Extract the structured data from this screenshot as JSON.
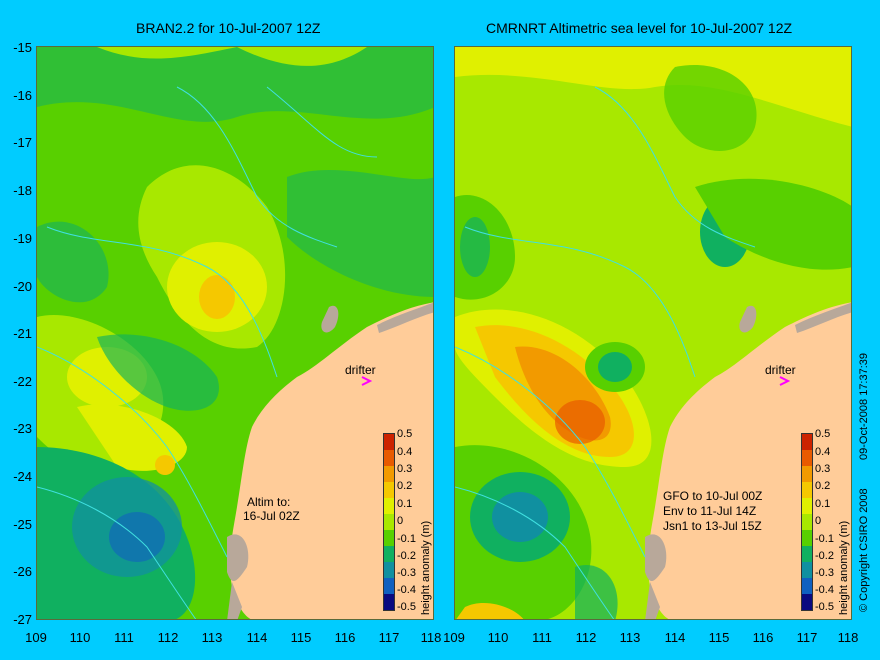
{
  "left_panel": {
    "title": "BRAN2.2 for 10-Jul-2007 12Z",
    "note_line1": "Altim to:",
    "note_line2": "16-Jul 02Z",
    "drifter": "drifter"
  },
  "right_panel": {
    "title": "CMRNRT Altimetric sea level  for 10-Jul-2007 12Z",
    "note_line1": "GFO to 10-Jul 00Z",
    "note_line2": "Env to 11-Jul 14Z",
    "note_line3": "Jsn1 to 13-Jul 15Z",
    "drifter": "drifter"
  },
  "y_axis_labels": [
    "-15",
    "-16",
    "-17",
    "-18",
    "-19",
    "-20",
    "-21",
    "-22",
    "-23",
    "-24",
    "-25",
    "-26",
    "-27"
  ],
  "x_axis_labels": [
    "109",
    "110",
    "111",
    "112",
    "113",
    "114",
    "115",
    "116",
    "117",
    "118"
  ],
  "colorbar": {
    "title": "height anomaly (m)",
    "labels": [
      "0.5",
      "0.4",
      "0.3",
      "0.2",
      "0.1",
      "0",
      "-0.1",
      "-0.2",
      "-0.3",
      "-0.4",
      "-0.5"
    ],
    "colors": [
      "#cc2200",
      "#e85a00",
      "#f29a00",
      "#f5c800",
      "#e0f000",
      "#a8e800",
      "#58d000",
      "#10b060",
      "#1090a0",
      "#1060c0",
      "#1020a0",
      "#0a0a80"
    ]
  },
  "timestamp": "09-Oct-2008 17:37:39",
  "copyright": "© Copyright CSIRO 2008",
  "colors": {
    "background": "#00ccff",
    "land": "#ffcc99",
    "coast_grey": "#b8a89a",
    "contour": "#40e0e0",
    "drifter": "#ff00ff"
  }
}
